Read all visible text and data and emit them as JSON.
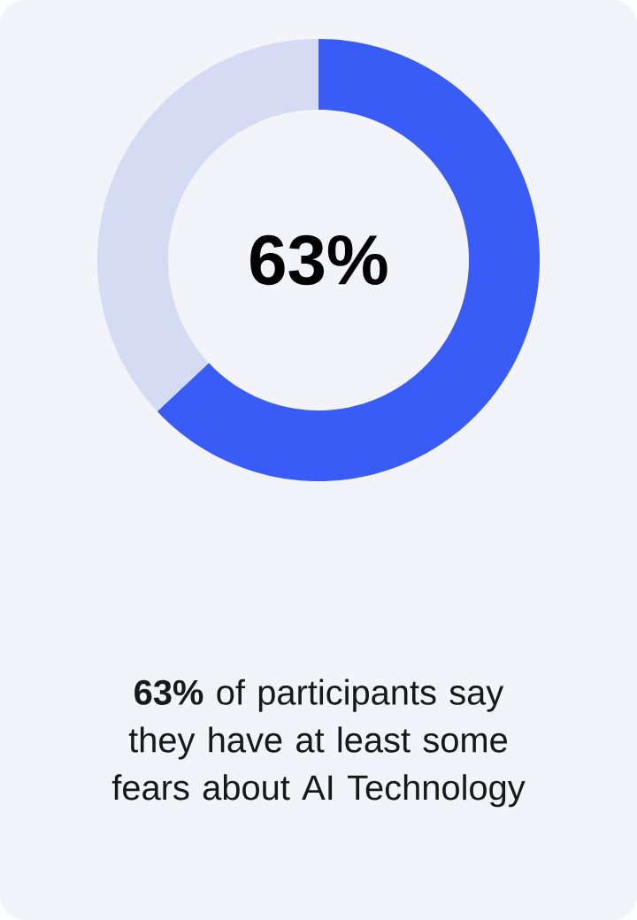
{
  "chart_data": {
    "type": "donut",
    "categories": [
      null,
      null
    ],
    "values": [
      63,
      37
    ],
    "colors": [
      "#3a5cf6",
      "#d5dbf3"
    ],
    "value_labels": [
      "63%",
      null
    ],
    "annotations": [
      "**63%** of participants say they have at least some fears about AI Technology"
    ]
  }
}
